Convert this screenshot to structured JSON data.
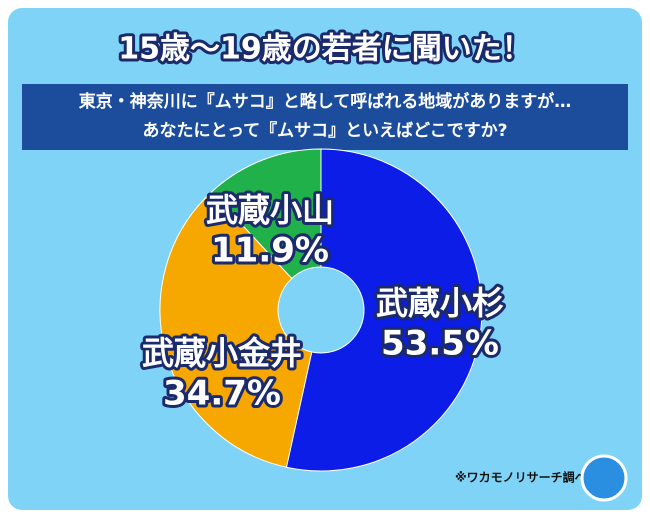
{
  "chart_data": {
    "type": "donut",
    "title": "15歳～19歳の若者に聞いた！",
    "subtitle": [
      "東京・神奈川に『ムサコ』と略して呼ばれる地域がありますが…",
      "あなたにとって『ムサコ』といえばどこですか?"
    ],
    "categories": [
      "武蔵小杉",
      "武蔵小金井",
      "武蔵小山"
    ],
    "values": [
      53.5,
      34.7,
      11.9
    ],
    "value_labels": [
      "53.5%",
      "34.7%",
      "11.9%"
    ],
    "colors": [
      "#0b1de6",
      "#f6a700",
      "#21b14b"
    ],
    "source": "※ワカモノリサーチ調べ"
  }
}
